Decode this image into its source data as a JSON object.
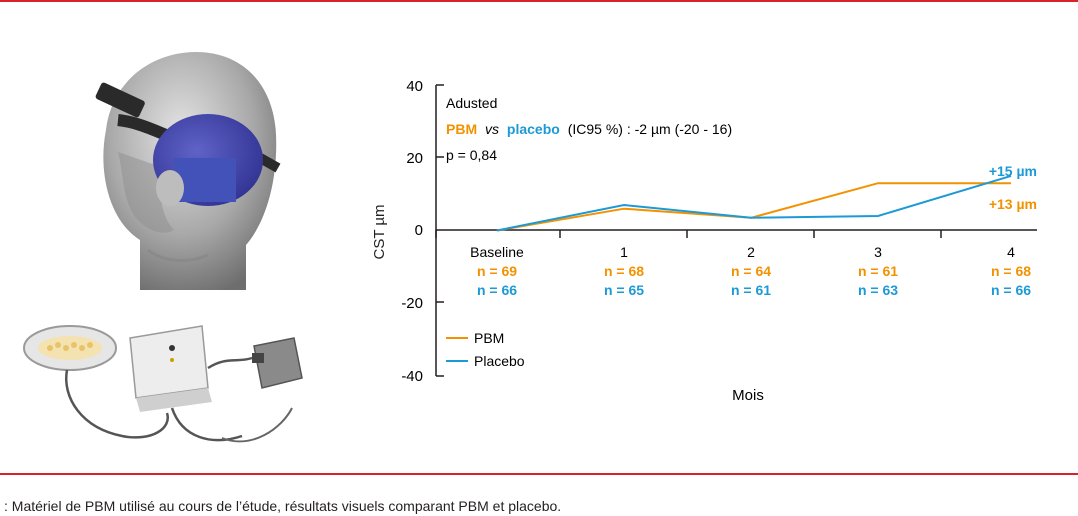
{
  "caption": ": Matériel de PBM utilisé au cours de l’étude, résultats visuels comparant PBM et placebo.",
  "colors": {
    "pbm": "#f39200",
    "placebo": "#1c9ad6",
    "rule": "#d9232a",
    "text": "#231f20"
  },
  "annotation": {
    "line1": "Adusted",
    "pbm": "PBM",
    "vs": "vs",
    "placebo": "placebo",
    "ci": "(IC95 %) : -2 µm (-20 - 16)",
    "p": "p = 0,84"
  },
  "chart_data": {
    "type": "line",
    "ylabel": "CST µm",
    "xlabel": "Mois",
    "ylim": [
      -40,
      40
    ],
    "yticks": [
      "40",
      "20",
      "0",
      "-20",
      "-40"
    ],
    "categories": [
      "Baseline",
      "1",
      "2",
      "3",
      "4"
    ],
    "series": [
      {
        "name": "PBM",
        "color": "#f39200",
        "values": [
          0,
          6,
          3.5,
          13,
          13
        ],
        "n": [
          "n = 69",
          "n = 68",
          "n = 64",
          "n = 61",
          "n = 68"
        ],
        "end_label": "+13 µm"
      },
      {
        "name": "Placebo",
        "color": "#1c9ad6",
        "values": [
          0,
          7,
          3.5,
          4,
          15
        ],
        "n": [
          "n = 66",
          "n = 65",
          "n = 61",
          "n = 63",
          "n = 66"
        ],
        "end_label": "+15 µm"
      }
    ],
    "legend_position": "bottom-left",
    "grid": false
  }
}
